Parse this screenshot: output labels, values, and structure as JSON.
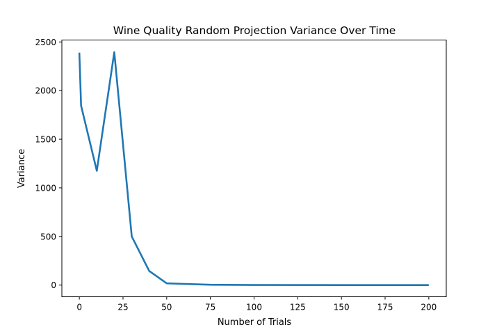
{
  "chart_data": {
    "type": "line",
    "title": "Wine Quality Random Projection Variance Over Time",
    "xlabel": "Number of Trials",
    "ylabel": "Variance",
    "xlim": [
      -10,
      210
    ],
    "ylim": [
      -120,
      2520
    ],
    "xticks": [
      0,
      25,
      50,
      75,
      100,
      125,
      150,
      175,
      200
    ],
    "yticks": [
      0,
      500,
      1000,
      1500,
      2000,
      2500
    ],
    "grid": false,
    "legend": "none",
    "series": [
      {
        "color": "#1f77b4",
        "x": [
          0,
          1,
          10,
          20,
          30,
          40,
          50,
          75,
          100,
          200
        ],
        "y": [
          2390,
          1845,
          1175,
          2395,
          500,
          145,
          18,
          4,
          1,
          0
        ]
      }
    ]
  }
}
